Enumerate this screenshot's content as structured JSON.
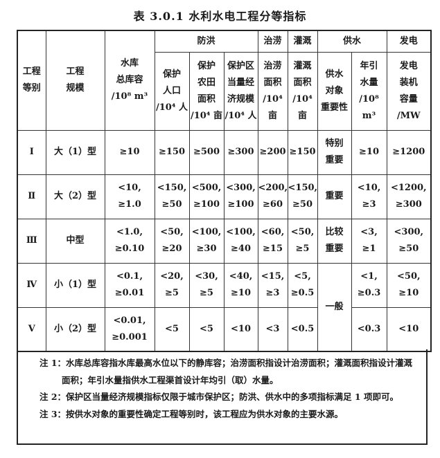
{
  "title": "表 3.0.1   水利水电工程分等指标",
  "header": {
    "grade": "工程\n等别",
    "scale": "工程\n规模",
    "reservoir": "水库\n总库容\n/10⁸ m³",
    "flood": "防洪",
    "drainage": "治涝",
    "irrigation": "灌溉",
    "water_supply": "供水",
    "power": "发电",
    "flood_population": "保护\n人口\n/10⁴ 人",
    "flood_farmland": "保护\n农田\n面积\n/10⁴ 亩",
    "flood_economy": "保护区\n当量经\n济规模\n/10⁴ 人",
    "drainage_area": "治涝\n面积\n/10⁴\n亩",
    "irrigation_area": "灌溉\n面积\n/10⁴\n亩",
    "supply_importance": "供水\n对象\n重要性",
    "supply_volume": "年引\n水量\n/10⁸ m³",
    "power_capacity": "发电\n装机\n容量\n/MW"
  },
  "rows": [
    [
      "Ⅰ",
      "大（1）型",
      "≥10",
      "≥150",
      "≥500",
      "≥300",
      "≥200",
      "≥150",
      "特别\n重要",
      "≥10",
      "≥1200"
    ],
    [
      "Ⅱ",
      "大（2）型",
      "<10,\n≥1.0",
      "<150,\n≥50",
      "<500,\n≥100",
      "<300,\n≥100",
      "<200,\n≥60",
      "<150,\n≥50",
      "重要",
      "<10,\n≥3",
      "<1200,\n≥300"
    ],
    [
      "Ⅲ",
      "中型",
      "<1.0,\n≥0.10",
      "<50,\n≥20",
      "<100,\n≥30",
      "<100,\n≥40",
      "<60,\n≥15",
      "<50,\n≥5",
      "比较\n重要",
      "<3,\n≥1",
      "<300,\n≥50"
    ],
    [
      "Ⅳ",
      "小（1）型",
      "<0.1,\n≥0.01",
      "<20,\n≥5",
      "<30,\n≥5",
      "<40,\n≥10",
      "<15,\n≥3",
      "<5,\n≥0.5",
      "一般",
      "<1,\n≥0.3",
      "<50,\n≥10"
    ],
    [
      "Ⅴ",
      "小（2）型",
      "<0.01,\n≥0.001",
      "<5",
      "<5",
      "<10",
      "<3",
      "<0.5",
      "",
      "<0.3",
      "<10"
    ]
  ],
  "notes": [
    "注 1：水库总库容指水库最高水位以下的静库容；治涝面积指设计治涝面积；灌溉面积指设计灌溉面积；年引水量指供水工程渠首设计年均引（取）水量。",
    "注 2：保护区当量经济规模指标仅限于城市保护区；防洪、供水中的多项指标满足 1 项即可。",
    "注 3：按供水对象的重要性确定工程等别时，该工程应为供水对象的主要水源。"
  ]
}
